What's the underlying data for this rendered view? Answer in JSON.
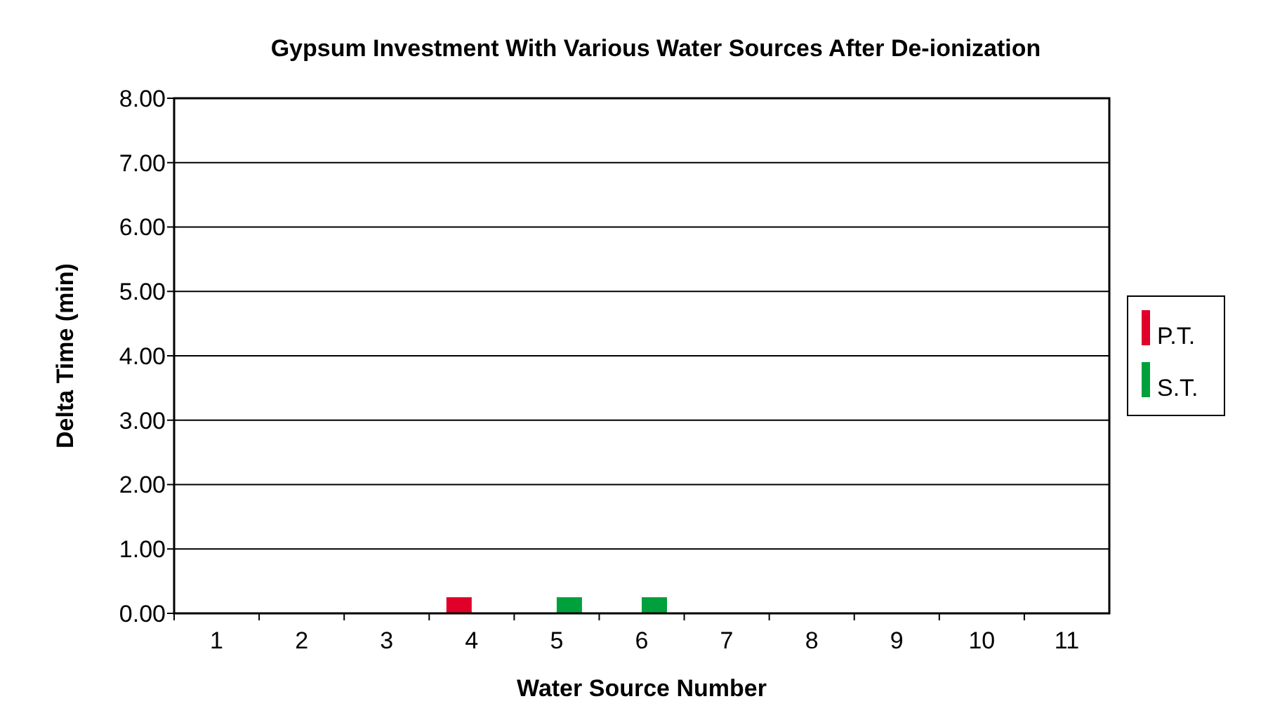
{
  "chart_data": {
    "type": "bar",
    "title": "Gypsum Investment With Various Water Sources After De-ionization",
    "xlabel": "Water Source Number",
    "ylabel": "Delta Time (min)",
    "categories": [
      "1",
      "2",
      "3",
      "4",
      "5",
      "6",
      "7",
      "8",
      "9",
      "10",
      "11"
    ],
    "series": [
      {
        "name": "P.T.",
        "color": "#e0002a",
        "values": [
          null,
          null,
          null,
          0.25,
          null,
          null,
          null,
          null,
          null,
          null,
          null
        ]
      },
      {
        "name": "S.T.",
        "color": "#00a03c",
        "values": [
          null,
          null,
          null,
          null,
          0.25,
          0.25,
          null,
          null,
          null,
          null,
          null
        ]
      }
    ],
    "ylim": [
      0,
      8
    ],
    "yticks": [
      {
        "value": 0,
        "label": "0.00"
      },
      {
        "value": 1,
        "label": "1.00"
      },
      {
        "value": 2,
        "label": "2.00"
      },
      {
        "value": 3,
        "label": "3.00"
      },
      {
        "value": 4,
        "label": "4.00"
      },
      {
        "value": 5,
        "label": "5.00"
      },
      {
        "value": 6,
        "label": "6.00"
      },
      {
        "value": 7,
        "label": "7.00"
      },
      {
        "value": 8,
        "label": "8.00"
      }
    ],
    "grid": "y",
    "legend": "right"
  }
}
